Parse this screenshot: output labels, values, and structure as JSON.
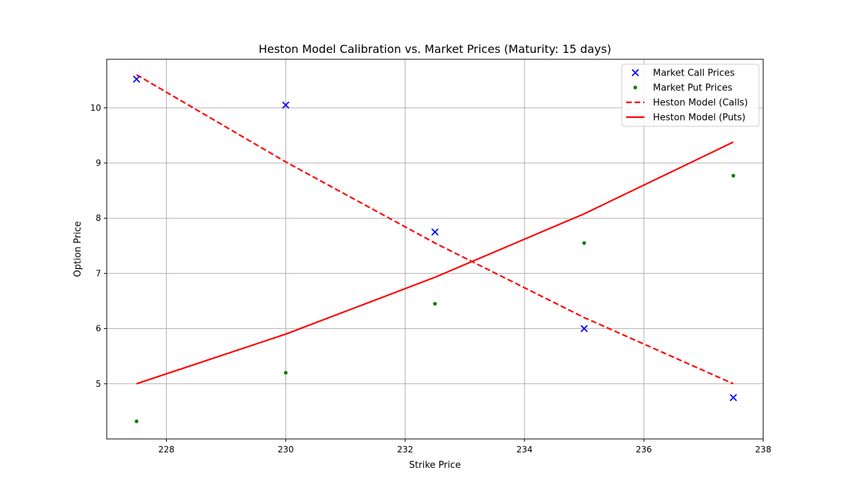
{
  "chart_data": {
    "type": "line",
    "title": "Heston Model Calibration vs. Market Prices (Maturity: 15 days)",
    "xlabel": "Strike Price",
    "ylabel": "Option Price",
    "xlim": [
      227.0,
      238.0
    ],
    "ylim": [
      4.0,
      10.88
    ],
    "xticks": [
      228,
      230,
      232,
      234,
      236,
      238
    ],
    "yticks": [
      5,
      6,
      7,
      8,
      9,
      10
    ],
    "grid": true,
    "legend_position": "top-right",
    "series": [
      {
        "name": "Market Call Prices",
        "kind": "scatter",
        "marker": "x",
        "color": "#0000ff",
        "x": [
          227.5,
          230.0,
          232.5,
          235.0,
          237.5
        ],
        "y": [
          10.52,
          10.05,
          7.75,
          6.0,
          4.75
        ]
      },
      {
        "name": "Market Put Prices",
        "kind": "scatter",
        "marker": "dot",
        "color": "#008000",
        "x": [
          227.5,
          230.0,
          232.5,
          235.0,
          237.5
        ],
        "y": [
          4.32,
          5.2,
          6.45,
          7.55,
          8.77
        ]
      },
      {
        "name": "Heston Model (Calls)",
        "kind": "line",
        "dash": true,
        "color": "#ff0000",
        "x": [
          227.5,
          230.0,
          232.5,
          235.0,
          237.5
        ],
        "y": [
          10.6,
          9.02,
          7.55,
          6.2,
          5.0
        ]
      },
      {
        "name": "Heston Model (Puts)",
        "kind": "line",
        "dash": false,
        "color": "#ff0000",
        "x": [
          227.5,
          230.0,
          232.5,
          235.0,
          237.5
        ],
        "y": [
          5.0,
          5.9,
          6.93,
          8.08,
          9.38
        ]
      }
    ]
  }
}
